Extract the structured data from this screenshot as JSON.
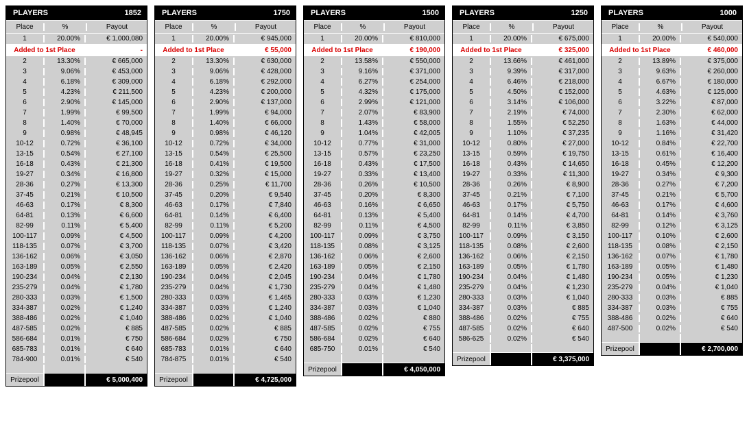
{
  "labels": {
    "players": "PLAYERS",
    "place": "Place",
    "pct": "%",
    "payout": "Payout",
    "added": "Added to 1st Place",
    "prizepool": "Prizepool"
  },
  "colors": {
    "header_bg": "#000000",
    "header_fg": "#ffffff",
    "cell_bg": "#cfcfcf",
    "added_fg": "#d80000",
    "border": "#ffffff"
  },
  "max_rows": 31,
  "tables": [
    {
      "players": "1852",
      "first": {
        "place": "1",
        "pct": "20.00%",
        "pay": "€ 1,000,080"
      },
      "added": "-",
      "rows": [
        {
          "place": "2",
          "pct": "13.30%",
          "pay": "€ 665,000"
        },
        {
          "place": "3",
          "pct": "9.06%",
          "pay": "€ 453,000"
        },
        {
          "place": "4",
          "pct": "6.18%",
          "pay": "€ 309,000"
        },
        {
          "place": "5",
          "pct": "4.23%",
          "pay": "€ 211,500"
        },
        {
          "place": "6",
          "pct": "2.90%",
          "pay": "€ 145,000"
        },
        {
          "place": "7",
          "pct": "1.99%",
          "pay": "€ 99,500"
        },
        {
          "place": "8",
          "pct": "1.40%",
          "pay": "€ 70,000"
        },
        {
          "place": "9",
          "pct": "0.98%",
          "pay": "€ 48,945"
        },
        {
          "place": "10-12",
          "pct": "0.72%",
          "pay": "€ 36,100"
        },
        {
          "place": "13-15",
          "pct": "0.54%",
          "pay": "€ 27,100"
        },
        {
          "place": "16-18",
          "pct": "0.43%",
          "pay": "€ 21,300"
        },
        {
          "place": "19-27",
          "pct": "0.34%",
          "pay": "€ 16,800"
        },
        {
          "place": "28-36",
          "pct": "0.27%",
          "pay": "€ 13,300"
        },
        {
          "place": "37-45",
          "pct": "0.21%",
          "pay": "€ 10,500"
        },
        {
          "place": "46-63",
          "pct": "0.17%",
          "pay": "€ 8,300"
        },
        {
          "place": "64-81",
          "pct": "0.13%",
          "pay": "€ 6,600"
        },
        {
          "place": "82-99",
          "pct": "0.11%",
          "pay": "€ 5,400"
        },
        {
          "place": "100-117",
          "pct": "0.09%",
          "pay": "€ 4,500"
        },
        {
          "place": "118-135",
          "pct": "0.07%",
          "pay": "€ 3,700"
        },
        {
          "place": "136-162",
          "pct": "0.06%",
          "pay": "€ 3,050"
        },
        {
          "place": "163-189",
          "pct": "0.05%",
          "pay": "€ 2,550"
        },
        {
          "place": "190-234",
          "pct": "0.04%",
          "pay": "€ 2,130"
        },
        {
          "place": "235-279",
          "pct": "0.04%",
          "pay": "€ 1,780"
        },
        {
          "place": "280-333",
          "pct": "0.03%",
          "pay": "€ 1,500"
        },
        {
          "place": "334-387",
          "pct": "0.02%",
          "pay": "€ 1,240"
        },
        {
          "place": "388-486",
          "pct": "0.02%",
          "pay": "€ 1,040"
        },
        {
          "place": "487-585",
          "pct": "0.02%",
          "pay": "€ 885"
        },
        {
          "place": "586-684",
          "pct": "0.01%",
          "pay": "€ 750"
        },
        {
          "place": "685-783",
          "pct": "0.01%",
          "pay": "€ 640"
        },
        {
          "place": "784-900",
          "pct": "0.01%",
          "pay": "€ 540"
        }
      ],
      "prizepool": "€ 5,000,400"
    },
    {
      "players": "1750",
      "first": {
        "place": "1",
        "pct": "20.00%",
        "pay": "€ 945,000"
      },
      "added": "€ 55,000",
      "rows": [
        {
          "place": "2",
          "pct": "13.30%",
          "pay": "€ 630,000"
        },
        {
          "place": "3",
          "pct": "9.06%",
          "pay": "€ 428,000"
        },
        {
          "place": "4",
          "pct": "6.18%",
          "pay": "€ 292,000"
        },
        {
          "place": "5",
          "pct": "4.23%",
          "pay": "€ 200,000"
        },
        {
          "place": "6",
          "pct": "2.90%",
          "pay": "€ 137,000"
        },
        {
          "place": "7",
          "pct": "1.99%",
          "pay": "€ 94,000"
        },
        {
          "place": "8",
          "pct": "1.40%",
          "pay": "€ 66,000"
        },
        {
          "place": "9",
          "pct": "0.98%",
          "pay": "€ 46,120"
        },
        {
          "place": "10-12",
          "pct": "0.72%",
          "pay": "€ 34,000"
        },
        {
          "place": "13-15",
          "pct": "0.54%",
          "pay": "€ 25,500"
        },
        {
          "place": "16-18",
          "pct": "0.41%",
          "pay": "€ 19,500"
        },
        {
          "place": "19-27",
          "pct": "0.32%",
          "pay": "€ 15,000"
        },
        {
          "place": "28-36",
          "pct": "0.25%",
          "pay": "€ 11,700"
        },
        {
          "place": "37-45",
          "pct": "0.20%",
          "pay": "€ 9,540"
        },
        {
          "place": "46-63",
          "pct": "0.17%",
          "pay": "€ 7,840"
        },
        {
          "place": "64-81",
          "pct": "0.14%",
          "pay": "€ 6,400"
        },
        {
          "place": "82-99",
          "pct": "0.11%",
          "pay": "€ 5,200"
        },
        {
          "place": "100-117",
          "pct": "0.09%",
          "pay": "€ 4,200"
        },
        {
          "place": "118-135",
          "pct": "0.07%",
          "pay": "€ 3,420"
        },
        {
          "place": "136-162",
          "pct": "0.06%",
          "pay": "€ 2,870"
        },
        {
          "place": "163-189",
          "pct": "0.05%",
          "pay": "€ 2,420"
        },
        {
          "place": "190-234",
          "pct": "0.04%",
          "pay": "€ 2,045"
        },
        {
          "place": "235-279",
          "pct": "0.04%",
          "pay": "€ 1,730"
        },
        {
          "place": "280-333",
          "pct": "0.03%",
          "pay": "€ 1,465"
        },
        {
          "place": "334-387",
          "pct": "0.03%",
          "pay": "€ 1,240"
        },
        {
          "place": "388-486",
          "pct": "0.02%",
          "pay": "€ 1,040"
        },
        {
          "place": "487-585",
          "pct": "0.02%",
          "pay": "€ 885"
        },
        {
          "place": "586-684",
          "pct": "0.02%",
          "pay": "€ 750"
        },
        {
          "place": "685-783",
          "pct": "0.01%",
          "pay": "€ 640"
        },
        {
          "place": "784-875",
          "pct": "0.01%",
          "pay": "€ 540"
        }
      ],
      "prizepool": "€ 4,725,000"
    },
    {
      "players": "1500",
      "first": {
        "place": "1",
        "pct": "20.00%",
        "pay": "€ 810,000"
      },
      "added": "€ 190,000",
      "rows": [
        {
          "place": "2",
          "pct": "13.58%",
          "pay": "€ 550,000"
        },
        {
          "place": "3",
          "pct": "9.16%",
          "pay": "€ 371,000"
        },
        {
          "place": "4",
          "pct": "6.27%",
          "pay": "€ 254,000"
        },
        {
          "place": "5",
          "pct": "4.32%",
          "pay": "€ 175,000"
        },
        {
          "place": "6",
          "pct": "2.99%",
          "pay": "€ 121,000"
        },
        {
          "place": "7",
          "pct": "2.07%",
          "pay": "€ 83,900"
        },
        {
          "place": "8",
          "pct": "1.43%",
          "pay": "€ 58,000"
        },
        {
          "place": "9",
          "pct": "1.04%",
          "pay": "€ 42,005"
        },
        {
          "place": "10-12",
          "pct": "0.77%",
          "pay": "€ 31,000"
        },
        {
          "place": "13-15",
          "pct": "0.57%",
          "pay": "€ 23,250"
        },
        {
          "place": "16-18",
          "pct": "0.43%",
          "pay": "€ 17,500"
        },
        {
          "place": "19-27",
          "pct": "0.33%",
          "pay": "€ 13,400"
        },
        {
          "place": "28-36",
          "pct": "0.26%",
          "pay": "€ 10,500"
        },
        {
          "place": "37-45",
          "pct": "0.20%",
          "pay": "€ 8,300"
        },
        {
          "place": "46-63",
          "pct": "0.16%",
          "pay": "€ 6,650"
        },
        {
          "place": "64-81",
          "pct": "0.13%",
          "pay": "€ 5,400"
        },
        {
          "place": "82-99",
          "pct": "0.11%",
          "pay": "€ 4,500"
        },
        {
          "place": "100-117",
          "pct": "0.09%",
          "pay": "€ 3,750"
        },
        {
          "place": "118-135",
          "pct": "0.08%",
          "pay": "€ 3,125"
        },
        {
          "place": "136-162",
          "pct": "0.06%",
          "pay": "€ 2,600"
        },
        {
          "place": "163-189",
          "pct": "0.05%",
          "pay": "€ 2,150"
        },
        {
          "place": "190-234",
          "pct": "0.04%",
          "pay": "€ 1,780"
        },
        {
          "place": "235-279",
          "pct": "0.04%",
          "pay": "€ 1,480"
        },
        {
          "place": "280-333",
          "pct": "0.03%",
          "pay": "€ 1,230"
        },
        {
          "place": "334-387",
          "pct": "0.03%",
          "pay": "€ 1,040"
        },
        {
          "place": "388-486",
          "pct": "0.02%",
          "pay": "€ 880"
        },
        {
          "place": "487-585",
          "pct": "0.02%",
          "pay": "€ 755"
        },
        {
          "place": "586-684",
          "pct": "0.02%",
          "pay": "€ 640"
        },
        {
          "place": "685-750",
          "pct": "0.01%",
          "pay": "€ 540"
        }
      ],
      "prizepool": "€ 4,050,000"
    },
    {
      "players": "1250",
      "first": {
        "place": "1",
        "pct": "20.00%",
        "pay": "€ 675,000"
      },
      "added": "€ 325,000",
      "rows": [
        {
          "place": "2",
          "pct": "13.66%",
          "pay": "€ 461,000"
        },
        {
          "place": "3",
          "pct": "9.39%",
          "pay": "€ 317,000"
        },
        {
          "place": "4",
          "pct": "6.46%",
          "pay": "€ 218,000"
        },
        {
          "place": "5",
          "pct": "4.50%",
          "pay": "€ 152,000"
        },
        {
          "place": "6",
          "pct": "3.14%",
          "pay": "€ 106,000"
        },
        {
          "place": "7",
          "pct": "2.19%",
          "pay": "€ 74,000"
        },
        {
          "place": "8",
          "pct": "1.55%",
          "pay": "€ 52,250"
        },
        {
          "place": "9",
          "pct": "1.10%",
          "pay": "€ 37,235"
        },
        {
          "place": "10-12",
          "pct": "0.80%",
          "pay": "€ 27,000"
        },
        {
          "place": "13-15",
          "pct": "0.59%",
          "pay": "€ 19,750"
        },
        {
          "place": "16-18",
          "pct": "0.43%",
          "pay": "€ 14,650"
        },
        {
          "place": "19-27",
          "pct": "0.33%",
          "pay": "€ 11,300"
        },
        {
          "place": "28-36",
          "pct": "0.26%",
          "pay": "€ 8,900"
        },
        {
          "place": "37-45",
          "pct": "0.21%",
          "pay": "€ 7,100"
        },
        {
          "place": "46-63",
          "pct": "0.17%",
          "pay": "€ 5,750"
        },
        {
          "place": "64-81",
          "pct": "0.14%",
          "pay": "€ 4,700"
        },
        {
          "place": "82-99",
          "pct": "0.11%",
          "pay": "€ 3,850"
        },
        {
          "place": "100-117",
          "pct": "0.09%",
          "pay": "€ 3,150"
        },
        {
          "place": "118-135",
          "pct": "0.08%",
          "pay": "€ 2,600"
        },
        {
          "place": "136-162",
          "pct": "0.06%",
          "pay": "€ 2,150"
        },
        {
          "place": "163-189",
          "pct": "0.05%",
          "pay": "€ 1,780"
        },
        {
          "place": "190-234",
          "pct": "0.04%",
          "pay": "€ 1,480"
        },
        {
          "place": "235-279",
          "pct": "0.04%",
          "pay": "€ 1,230"
        },
        {
          "place": "280-333",
          "pct": "0.03%",
          "pay": "€ 1,040"
        },
        {
          "place": "334-387",
          "pct": "0.03%",
          "pay": "€ 885"
        },
        {
          "place": "388-486",
          "pct": "0.02%",
          "pay": "€ 755"
        },
        {
          "place": "487-585",
          "pct": "0.02%",
          "pay": "€ 640"
        },
        {
          "place": "586-625",
          "pct": "0.02%",
          "pay": "€ 540"
        }
      ],
      "prizepool": "€ 3,375,000"
    },
    {
      "players": "1000",
      "first": {
        "place": "1",
        "pct": "20.00%",
        "pay": "€ 540,000"
      },
      "added": "€ 460,000",
      "rows": [
        {
          "place": "2",
          "pct": "13.89%",
          "pay": "€ 375,000"
        },
        {
          "place": "3",
          "pct": "9.63%",
          "pay": "€ 260,000"
        },
        {
          "place": "4",
          "pct": "6.67%",
          "pay": "€ 180,000"
        },
        {
          "place": "5",
          "pct": "4.63%",
          "pay": "€ 125,000"
        },
        {
          "place": "6",
          "pct": "3.22%",
          "pay": "€ 87,000"
        },
        {
          "place": "7",
          "pct": "2.30%",
          "pay": "€ 62,000"
        },
        {
          "place": "8",
          "pct": "1.63%",
          "pay": "€ 44,000"
        },
        {
          "place": "9",
          "pct": "1.16%",
          "pay": "€ 31,420"
        },
        {
          "place": "10-12",
          "pct": "0.84%",
          "pay": "€ 22,700"
        },
        {
          "place": "13-15",
          "pct": "0.61%",
          "pay": "€ 16,400"
        },
        {
          "place": "16-18",
          "pct": "0.45%",
          "pay": "€ 12,200"
        },
        {
          "place": "19-27",
          "pct": "0.34%",
          "pay": "€ 9,300"
        },
        {
          "place": "28-36",
          "pct": "0.27%",
          "pay": "€ 7,200"
        },
        {
          "place": "37-45",
          "pct": "0.21%",
          "pay": "€ 5,700"
        },
        {
          "place": "46-63",
          "pct": "0.17%",
          "pay": "€ 4,600"
        },
        {
          "place": "64-81",
          "pct": "0.14%",
          "pay": "€ 3,760"
        },
        {
          "place": "82-99",
          "pct": "0.12%",
          "pay": "€ 3,125"
        },
        {
          "place": "100-117",
          "pct": "0.10%",
          "pay": "€ 2,600"
        },
        {
          "place": "118-135",
          "pct": "0.08%",
          "pay": "€ 2,150"
        },
        {
          "place": "136-162",
          "pct": "0.07%",
          "pay": "€ 1,780"
        },
        {
          "place": "163-189",
          "pct": "0.05%",
          "pay": "€ 1,480"
        },
        {
          "place": "190-234",
          "pct": "0.05%",
          "pay": "€ 1,230"
        },
        {
          "place": "235-279",
          "pct": "0.04%",
          "pay": "€ 1,040"
        },
        {
          "place": "280-333",
          "pct": "0.03%",
          "pay": "€ 885"
        },
        {
          "place": "334-387",
          "pct": "0.03%",
          "pay": "€ 755"
        },
        {
          "place": "388-486",
          "pct": "0.02%",
          "pay": "€ 640"
        },
        {
          "place": "487-500",
          "pct": "0.02%",
          "pay": "€ 540"
        }
      ],
      "prizepool": "€ 2,700,000"
    }
  ]
}
